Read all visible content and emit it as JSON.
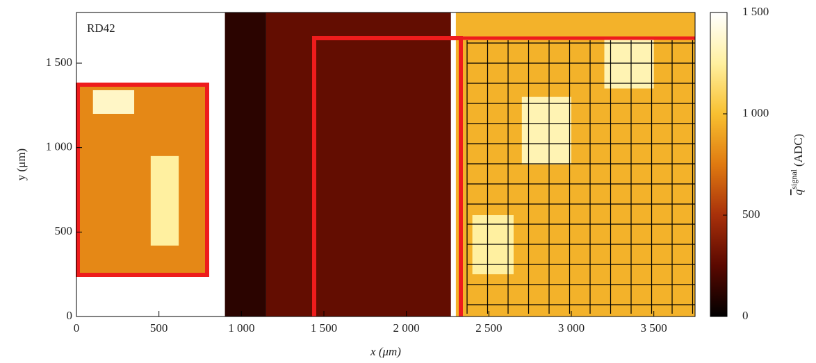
{
  "chart_data": {
    "type": "heatmap",
    "annotation": "RD42",
    "xlabel": "x (μm)",
    "ylabel": "y (μm)",
    "colorbar_label": {
      "symbol": "q",
      "superscript": "signal",
      "unit": "(ADC)"
    },
    "xlim": [
      0,
      3750
    ],
    "ylim": [
      0,
      1800
    ],
    "zlim": [
      0,
      1500
    ],
    "xticks": [
      0,
      500,
      {
        "value": 1000,
        "label": "1 000"
      },
      {
        "value": 1500,
        "label": "1 500"
      },
      {
        "value": 2000,
        "label": "2 000"
      },
      {
        "value": 2500,
        "label": "2 500"
      },
      {
        "value": 3000,
        "label": "3 000"
      },
      {
        "value": 3500,
        "label": "3 500"
      }
    ],
    "yticks": [
      0,
      500,
      {
        "value": 1000,
        "label": "1 000"
      },
      {
        "value": 1500,
        "label": "1 500"
      }
    ],
    "zticks": [
      0,
      500,
      {
        "value": 1000,
        "label": "1 000"
      },
      {
        "value": 1500,
        "label": "1 500"
      }
    ],
    "colorscale": [
      "#000000",
      "#5a0800",
      "#a8300a",
      "#e07a10",
      "#f8c030",
      "#fff0a0",
      "#ffffff"
    ],
    "regions": [
      {
        "x": [
          0,
          780
        ],
        "y": [
          250,
          1380
        ],
        "value": 800
      },
      {
        "x": [
          100,
          350
        ],
        "y": [
          1200,
          1340
        ],
        "value": 1350
      },
      {
        "x": [
          450,
          620
        ],
        "y": [
          420,
          950
        ],
        "value": 1250
      },
      {
        "x": [
          900,
          1150
        ],
        "y": [
          0,
          1800
        ],
        "value": 120
      },
      {
        "x": [
          1150,
          2270
        ],
        "y": [
          0,
          1800
        ],
        "value": 280
      },
      {
        "x": [
          2300,
          3750
        ],
        "y": [
          0,
          1800
        ],
        "value": 950
      },
      {
        "x": [
          2700,
          3000
        ],
        "y": [
          900,
          1300
        ],
        "value": 1300
      },
      {
        "x": [
          3200,
          3500
        ],
        "y": [
          1350,
          1650
        ],
        "value": 1300
      },
      {
        "x": [
          2400,
          2650
        ],
        "y": [
          250,
          600
        ],
        "value": 1250
      }
    ]
  }
}
